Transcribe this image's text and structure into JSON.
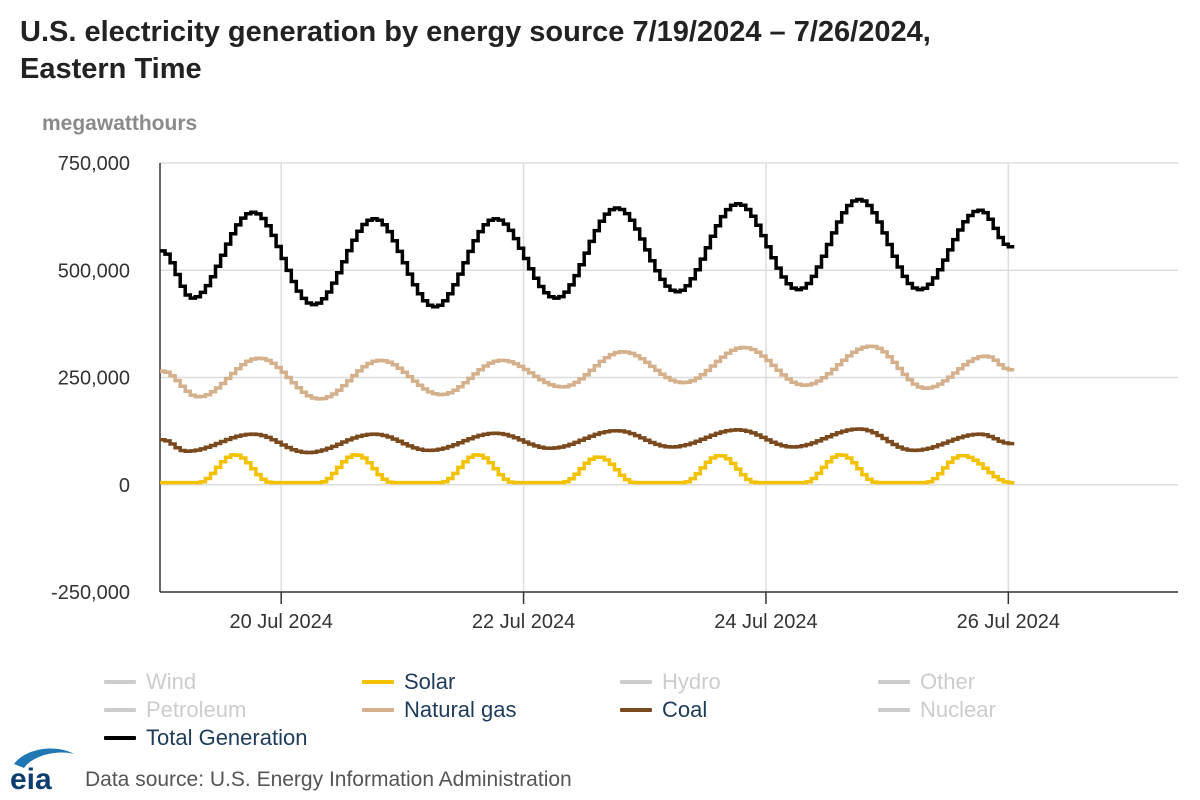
{
  "header": {
    "title_line1": "U.S. electricity generation by energy source 7/19/2024 – 7/26/2024,",
    "title_line2": "Eastern Time",
    "unit": "megawatthours"
  },
  "footer": {
    "source": "Data source: U.S. Energy Information Administration",
    "logo_text": "eia"
  },
  "colors": {
    "solar": "#f2c200",
    "natural_gas": "#d4b08c",
    "coal": "#7a4a1e",
    "total": "#000000",
    "inactive": "#cccccc",
    "grid": "#dddddd",
    "axis": "#333333",
    "title": "#222222"
  },
  "chart_data": {
    "type": "line",
    "title": "U.S. electricity generation by energy source 7/19/2024 – 7/26/2024, Eastern Time",
    "ylabel": "megawatthours",
    "xlabel": "",
    "ylim": [
      -250000,
      750000
    ],
    "yticks": [
      -250000,
      0,
      250000,
      500000,
      750000
    ],
    "ytick_labels": [
      "-250,000",
      "0",
      "250,000",
      "500,000",
      "750,000"
    ],
    "x_unit": "days since 7/19/2024 00:00 ET",
    "xlim": [
      0,
      8.4
    ],
    "xticks": [
      1,
      3,
      5,
      7
    ],
    "xtick_labels": [
      "20 Jul 2024",
      "22 Jul 2024",
      "24 Jul 2024",
      "26 Jul 2024"
    ],
    "grid": true,
    "legend": [
      {
        "name": "Wind",
        "active": false
      },
      {
        "name": "Solar",
        "active": true
      },
      {
        "name": "Hydro",
        "active": false
      },
      {
        "name": "Other",
        "active": false
      },
      {
        "name": "Petroleum",
        "active": false
      },
      {
        "name": "Natural gas",
        "active": true
      },
      {
        "name": "Coal",
        "active": true
      },
      {
        "name": "Nuclear",
        "active": false
      },
      {
        "name": "Total Generation",
        "active": true
      }
    ],
    "series": [
      {
        "name": "Total Generation",
        "points": [
          [
            0,
            545000
          ],
          [
            0.25,
            435000
          ],
          [
            0.75,
            635000
          ],
          [
            1.25,
            420000
          ],
          [
            1.75,
            620000
          ],
          [
            2.25,
            415000
          ],
          [
            2.75,
            620000
          ],
          [
            3.25,
            435000
          ],
          [
            3.75,
            645000
          ],
          [
            4.25,
            450000
          ],
          [
            4.75,
            655000
          ],
          [
            5.25,
            455000
          ],
          [
            5.75,
            665000
          ],
          [
            6.25,
            455000
          ],
          [
            6.75,
            640000
          ],
          [
            7.0,
            555000
          ]
        ]
      },
      {
        "name": "Natural gas",
        "points": [
          [
            0,
            265000
          ],
          [
            0.3,
            205000
          ],
          [
            0.8,
            295000
          ],
          [
            1.3,
            200000
          ],
          [
            1.8,
            290000
          ],
          [
            2.3,
            210000
          ],
          [
            2.8,
            290000
          ],
          [
            3.3,
            228000
          ],
          [
            3.8,
            310000
          ],
          [
            4.3,
            238000
          ],
          [
            4.8,
            320000
          ],
          [
            5.3,
            232000
          ],
          [
            5.85,
            323000
          ],
          [
            6.3,
            225000
          ],
          [
            6.8,
            300000
          ],
          [
            7.0,
            268000
          ]
        ]
      },
      {
        "name": "Coal",
        "points": [
          [
            0,
            105000
          ],
          [
            0.2,
            78000
          ],
          [
            0.75,
            118000
          ],
          [
            1.2,
            75000
          ],
          [
            1.75,
            118000
          ],
          [
            2.2,
            80000
          ],
          [
            2.75,
            120000
          ],
          [
            3.2,
            85000
          ],
          [
            3.75,
            126000
          ],
          [
            4.2,
            88000
          ],
          [
            4.75,
            128000
          ],
          [
            5.2,
            88000
          ],
          [
            5.75,
            130000
          ],
          [
            6.2,
            80000
          ],
          [
            6.75,
            118000
          ],
          [
            7.0,
            96000
          ]
        ]
      },
      {
        "name": "Solar",
        "points": [
          [
            0,
            5000
          ],
          [
            0.3,
            5000
          ],
          [
            0.6,
            70000
          ],
          [
            0.9,
            5000
          ],
          [
            1.3,
            5000
          ],
          [
            1.6,
            70000
          ],
          [
            1.9,
            5000
          ],
          [
            2.3,
            5000
          ],
          [
            2.6,
            70000
          ],
          [
            2.9,
            5000
          ],
          [
            3.3,
            5000
          ],
          [
            3.6,
            65000
          ],
          [
            3.9,
            5000
          ],
          [
            4.3,
            5000
          ],
          [
            4.6,
            68000
          ],
          [
            4.9,
            5000
          ],
          [
            5.3,
            5000
          ],
          [
            5.6,
            70000
          ],
          [
            5.9,
            5000
          ],
          [
            6.3,
            5000
          ],
          [
            6.6,
            68000
          ],
          [
            7.0,
            5000
          ]
        ]
      }
    ]
  }
}
